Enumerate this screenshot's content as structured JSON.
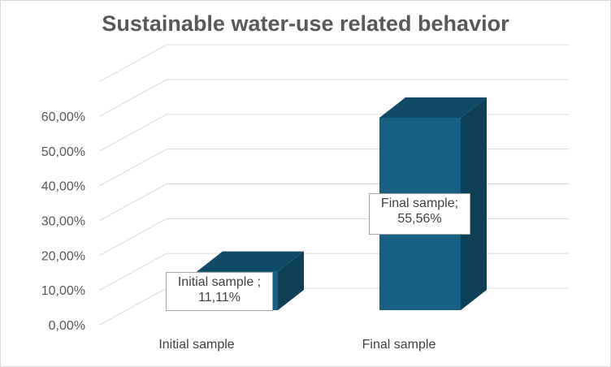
{
  "chart_data": {
    "type": "bar",
    "title": "Sustainable water-use related behavior",
    "categories": [
      "Initial sample",
      "Final sample"
    ],
    "values": [
      11.11,
      55.56
    ],
    "data_labels": [
      "Initial sample ;\n11,11%",
      "Final sample;\n55,56%"
    ],
    "yticks": [
      "0,00%",
      "10,00%",
      "20,00%",
      "30,00%",
      "40,00%",
      "50,00%",
      "60,00%"
    ],
    "ylim": [
      0,
      60
    ],
    "grid": true,
    "legend": "none",
    "colors": {
      "bar_front": "#176083",
      "bar_top": "#0f4a66",
      "bar_side": "#0d3f56",
      "grid": "#d9d9d9",
      "text": "#595959"
    }
  }
}
